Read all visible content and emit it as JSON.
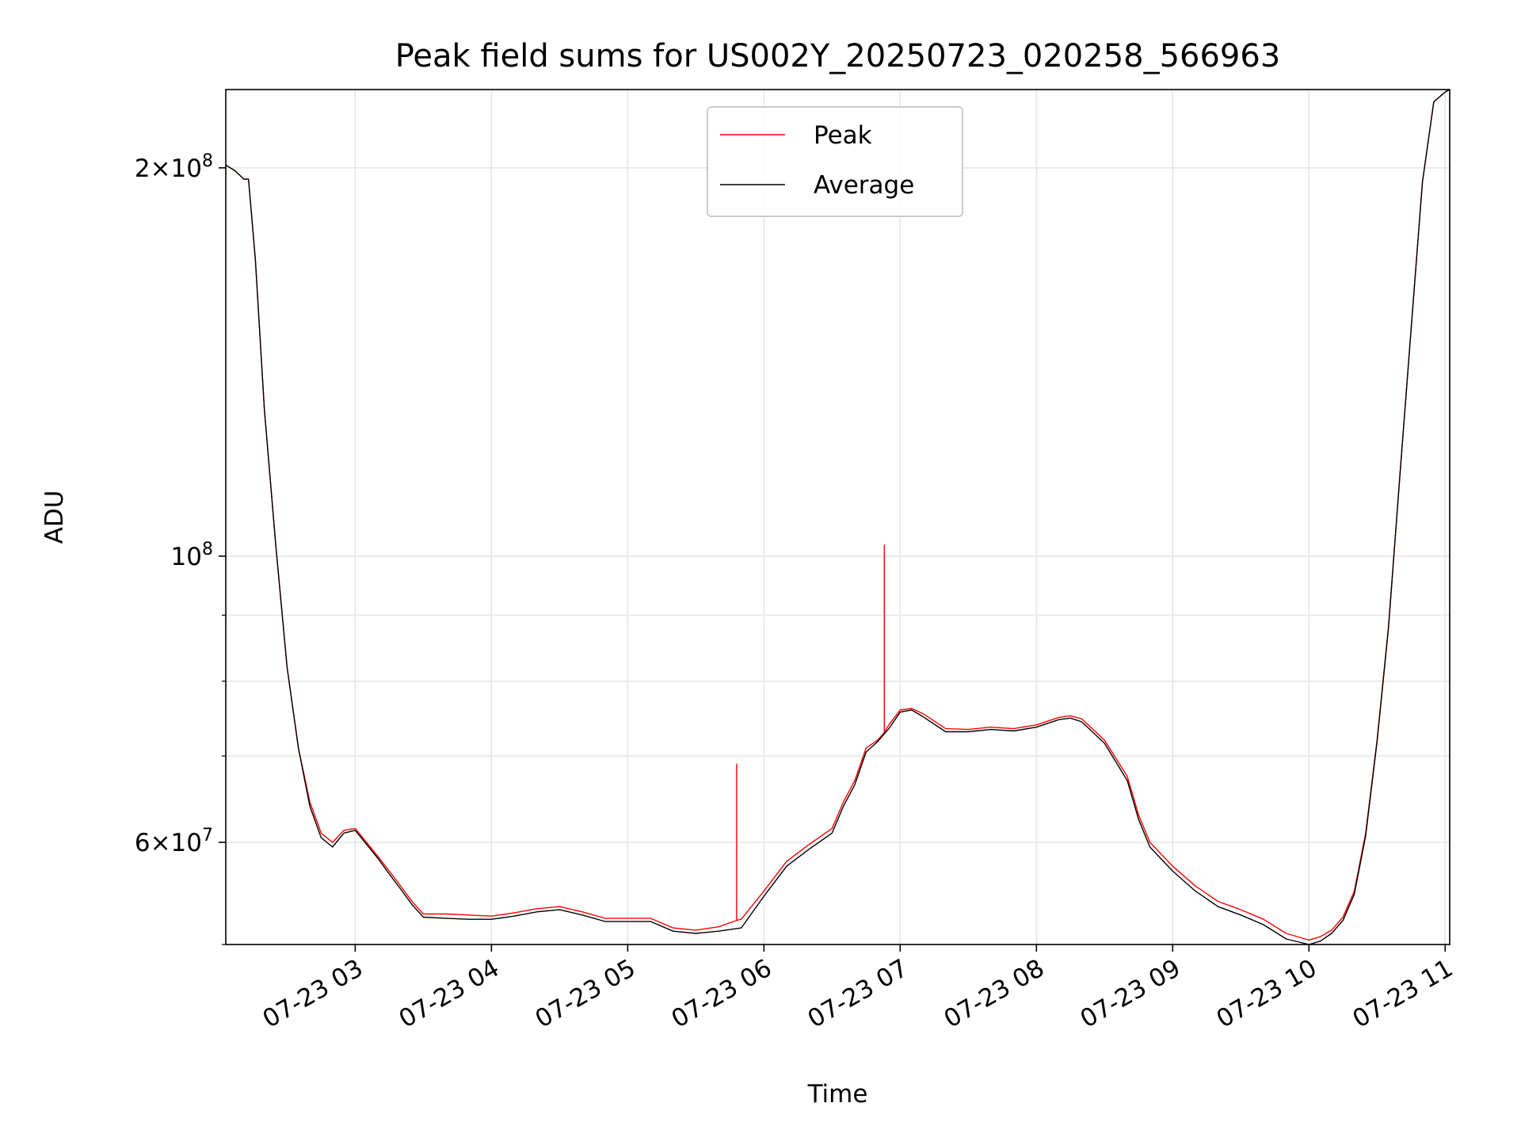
{
  "chart_data": {
    "type": "line",
    "title": "Peak field sums for US002Y_20250723_020258_566963",
    "xlabel": "Time",
    "ylabel": "ADU",
    "y_scale": "log",
    "ylim": [
      50000000,
      230000000
    ],
    "xlim": [
      "2025-07-23 02:03",
      "2025-07-23 11:02"
    ],
    "grid": true,
    "legend_position": "upper center",
    "x_ticks": [
      {
        "value": "2025-07-23 03:00",
        "label": "07-23 03"
      },
      {
        "value": "2025-07-23 04:00",
        "label": "07-23 04"
      },
      {
        "value": "2025-07-23 05:00",
        "label": "07-23 05"
      },
      {
        "value": "2025-07-23 06:00",
        "label": "07-23 06"
      },
      {
        "value": "2025-07-23 07:00",
        "label": "07-23 07"
      },
      {
        "value": "2025-07-23 08:00",
        "label": "07-23 08"
      },
      {
        "value": "2025-07-23 09:00",
        "label": "07-23 09"
      },
      {
        "value": "2025-07-23 10:00",
        "label": "07-23 10"
      },
      {
        "value": "2025-07-23 11:00",
        "label": "07-23 11"
      }
    ],
    "y_ticks": [
      {
        "value": 200000000,
        "base": "2×10",
        "exp": "8"
      },
      {
        "value": 100000000,
        "base": "10",
        "exp": "8"
      },
      {
        "value": 60000000,
        "base": "6×10",
        "exp": "7"
      }
    ],
    "y_minor_ticks": [
      50000000,
      70000000,
      80000000,
      90000000
    ],
    "series": [
      {
        "name": "Peak",
        "color": "#ff0000",
        "x": [
          "2025-07-23 02:03",
          "2025-07-23 02:07",
          "2025-07-23 02:11",
          "2025-07-23 02:13",
          "2025-07-23 02:16",
          "2025-07-23 02:20",
          "2025-07-23 02:25",
          "2025-07-23 02:30",
          "2025-07-23 02:35",
          "2025-07-23 02:40",
          "2025-07-23 02:45",
          "2025-07-23 02:50",
          "2025-07-23 02:55",
          "2025-07-23 03:00",
          "2025-07-23 03:05",
          "2025-07-23 03:10",
          "2025-07-23 03:15",
          "2025-07-23 03:20",
          "2025-07-23 03:25",
          "2025-07-23 03:30",
          "2025-07-23 03:40",
          "2025-07-23 03:50",
          "2025-07-23 04:00",
          "2025-07-23 04:10",
          "2025-07-23 04:20",
          "2025-07-23 04:30",
          "2025-07-23 04:40",
          "2025-07-23 04:50",
          "2025-07-23 05:00",
          "2025-07-23 05:10",
          "2025-07-23 05:20",
          "2025-07-23 05:30",
          "2025-07-23 05:40",
          "2025-07-23 05:48",
          "2025-07-23 05:48",
          "2025-07-23 05:48",
          "2025-07-23 05:50",
          "2025-07-23 06:00",
          "2025-07-23 06:10",
          "2025-07-23 06:20",
          "2025-07-23 06:30",
          "2025-07-23 06:35",
          "2025-07-23 06:40",
          "2025-07-23 06:45",
          "2025-07-23 06:50",
          "2025-07-23 06:53",
          "2025-07-23 06:53",
          "2025-07-23 06:53",
          "2025-07-23 06:55",
          "2025-07-23 07:00",
          "2025-07-23 07:05",
          "2025-07-23 07:10",
          "2025-07-23 07:20",
          "2025-07-23 07:30",
          "2025-07-23 07:40",
          "2025-07-23 07:50",
          "2025-07-23 08:00",
          "2025-07-23 08:10",
          "2025-07-23 08:15",
          "2025-07-23 08:20",
          "2025-07-23 08:30",
          "2025-07-23 08:40",
          "2025-07-23 08:45",
          "2025-07-23 08:50",
          "2025-07-23 09:00",
          "2025-07-23 09:10",
          "2025-07-23 09:20",
          "2025-07-23 09:30",
          "2025-07-23 09:40",
          "2025-07-23 09:50",
          "2025-07-23 10:00",
          "2025-07-23 10:05",
          "2025-07-23 10:10",
          "2025-07-23 10:15",
          "2025-07-23 10:20",
          "2025-07-23 10:25",
          "2025-07-23 10:30",
          "2025-07-23 10:35",
          "2025-07-23 10:40",
          "2025-07-23 10:45",
          "2025-07-23 10:50",
          "2025-07-23 10:55",
          "2025-07-23 11:00",
          "2025-07-23 11:02"
        ],
        "y": [
          201000000,
          199000000,
          196000000,
          196000000,
          170000000,
          130000000,
          102000000,
          82000000,
          71000000,
          64500000,
          61000000,
          60000000,
          61300000,
          61500000,
          60000000,
          58500000,
          57000000,
          55500000,
          54000000,
          52800000,
          52800000,
          52700000,
          52600000,
          52900000,
          53300000,
          53500000,
          53000000,
          52400000,
          52400000,
          52400000,
          51500000,
          51300000,
          51600000,
          52200000,
          69000000,
          52200000,
          52300000,
          55000000,
          58000000,
          59800000,
          61500000,
          64500000,
          67000000,
          71000000,
          72000000,
          73000000,
          102000000,
          73000000,
          74000000,
          76000000,
          76200000,
          75500000,
          73500000,
          73400000,
          73700000,
          73500000,
          74000000,
          75000000,
          75200000,
          74800000,
          72000000,
          67500000,
          63000000,
          60000000,
          57500000,
          55500000,
          54000000,
          53200000,
          52300000,
          51000000,
          50400000,
          50700000,
          51300000,
          52500000,
          55000000,
          61000000,
          72000000,
          88000000,
          115000000,
          150000000,
          195000000,
          225000000,
          229000000,
          230000000
        ]
      },
      {
        "name": "Average",
        "color": "#000000",
        "x": [
          "2025-07-23 02:03",
          "2025-07-23 02:07",
          "2025-07-23 02:11",
          "2025-07-23 02:13",
          "2025-07-23 02:16",
          "2025-07-23 02:20",
          "2025-07-23 02:25",
          "2025-07-23 02:30",
          "2025-07-23 02:35",
          "2025-07-23 02:40",
          "2025-07-23 02:45",
          "2025-07-23 02:50",
          "2025-07-23 02:55",
          "2025-07-23 03:00",
          "2025-07-23 03:05",
          "2025-07-23 03:10",
          "2025-07-23 03:15",
          "2025-07-23 03:20",
          "2025-07-23 03:25",
          "2025-07-23 03:30",
          "2025-07-23 03:40",
          "2025-07-23 03:50",
          "2025-07-23 04:00",
          "2025-07-23 04:10",
          "2025-07-23 04:20",
          "2025-07-23 04:30",
          "2025-07-23 04:40",
          "2025-07-23 04:50",
          "2025-07-23 05:00",
          "2025-07-23 05:10",
          "2025-07-23 05:20",
          "2025-07-23 05:30",
          "2025-07-23 05:40",
          "2025-07-23 05:50",
          "2025-07-23 06:00",
          "2025-07-23 06:10",
          "2025-07-23 06:20",
          "2025-07-23 06:30",
          "2025-07-23 06:35",
          "2025-07-23 06:40",
          "2025-07-23 06:45",
          "2025-07-23 06:50",
          "2025-07-23 06:55",
          "2025-07-23 07:00",
          "2025-07-23 07:05",
          "2025-07-23 07:10",
          "2025-07-23 07:20",
          "2025-07-23 07:30",
          "2025-07-23 07:40",
          "2025-07-23 07:50",
          "2025-07-23 08:00",
          "2025-07-23 08:10",
          "2025-07-23 08:15",
          "2025-07-23 08:20",
          "2025-07-23 08:30",
          "2025-07-23 08:40",
          "2025-07-23 08:45",
          "2025-07-23 08:50",
          "2025-07-23 09:00",
          "2025-07-23 09:10",
          "2025-07-23 09:20",
          "2025-07-23 09:30",
          "2025-07-23 09:40",
          "2025-07-23 09:50",
          "2025-07-23 10:00",
          "2025-07-23 10:05",
          "2025-07-23 10:10",
          "2025-07-23 10:15",
          "2025-07-23 10:20",
          "2025-07-23 10:25",
          "2025-07-23 10:30",
          "2025-07-23 10:35",
          "2025-07-23 10:40",
          "2025-07-23 10:45",
          "2025-07-23 10:50",
          "2025-07-23 10:55",
          "2025-07-23 11:00",
          "2025-07-23 11:02"
        ],
        "y": [
          201000000,
          199000000,
          196000000,
          196000000,
          170000000,
          130000000,
          102000000,
          82000000,
          71000000,
          64000000,
          60500000,
          59500000,
          61000000,
          61300000,
          59800000,
          58300000,
          56700000,
          55200000,
          53700000,
          52500000,
          52400000,
          52300000,
          52300000,
          52600000,
          53000000,
          53200000,
          52700000,
          52100000,
          52100000,
          52100000,
          51200000,
          51000000,
          51200000,
          51500000,
          54500000,
          57500000,
          59300000,
          61000000,
          64000000,
          66500000,
          70500000,
          71800000,
          73500000,
          75700000,
          76000000,
          75100000,
          73100000,
          73100000,
          73400000,
          73200000,
          73700000,
          74700000,
          74900000,
          74400000,
          71600000,
          67000000,
          62500000,
          59500000,
          57000000,
          55000000,
          53500000,
          52700000,
          51800000,
          50500000,
          50000000,
          50300000,
          51000000,
          52200000,
          54700000,
          60700000,
          71800000,
          87800000,
          115000000,
          150000000,
          195000000,
          225000000,
          229000000,
          230000000
        ]
      }
    ]
  }
}
